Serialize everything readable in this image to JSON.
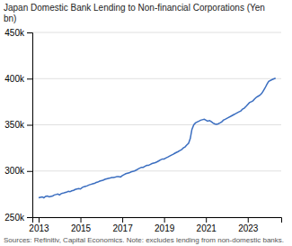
{
  "chart_data": {
    "type": "line",
    "title": "Japan Domestic Bank Lending to Non-financial Corporations (Yen",
    "subtitle": "bn)",
    "annotations": [
      "Sources: Refinitiv, Capital Economics. Note: excludes lending from non-domestic banks."
    ],
    "xlim": [
      2012.7,
      2024.6
    ],
    "xticks": [
      2013,
      2015,
      2017,
      2019,
      2021,
      2023
    ],
    "ylim": [
      250000,
      450000
    ],
    "yticks": [
      {
        "value": 250000,
        "label": "250k"
      },
      {
        "value": 300000,
        "label": "300k"
      },
      {
        "value": 350000,
        "label": "350k"
      },
      {
        "value": 400000,
        "label": "400k"
      },
      {
        "value": 450000,
        "label": "450k"
      }
    ],
    "grid": true,
    "x": [
      2013.0,
      2013.08,
      2013.17,
      2013.25,
      2013.33,
      2013.42,
      2013.5,
      2013.58,
      2013.67,
      2013.75,
      2013.83,
      2013.92,
      2014.0,
      2014.08,
      2014.17,
      2014.25,
      2014.33,
      2014.42,
      2014.5,
      2014.58,
      2014.67,
      2014.75,
      2014.83,
      2014.92,
      2015.0,
      2015.08,
      2015.17,
      2015.25,
      2015.33,
      2015.42,
      2015.5,
      2015.58,
      2015.67,
      2015.75,
      2015.83,
      2015.92,
      2016.0,
      2016.08,
      2016.17,
      2016.25,
      2016.33,
      2016.42,
      2016.5,
      2016.58,
      2016.67,
      2016.75,
      2016.83,
      2016.92,
      2017.0,
      2017.08,
      2017.17,
      2017.25,
      2017.33,
      2017.42,
      2017.5,
      2017.58,
      2017.67,
      2017.75,
      2017.83,
      2017.92,
      2018.0,
      2018.08,
      2018.17,
      2018.25,
      2018.33,
      2018.42,
      2018.5,
      2018.58,
      2018.67,
      2018.75,
      2018.83,
      2018.92,
      2019.0,
      2019.08,
      2019.17,
      2019.25,
      2019.33,
      2019.42,
      2019.5,
      2019.58,
      2019.67,
      2019.75,
      2019.83,
      2019.92,
      2020.0,
      2020.08,
      2020.17,
      2020.25,
      2020.33,
      2020.42,
      2020.5,
      2020.58,
      2020.67,
      2020.75,
      2020.83,
      2020.92,
      2021.0,
      2021.08,
      2021.17,
      2021.25,
      2021.33,
      2021.42,
      2021.5,
      2021.58,
      2021.67,
      2021.75,
      2021.83,
      2021.92,
      2022.0,
      2022.08,
      2022.17,
      2022.25,
      2022.33,
      2022.42,
      2022.5,
      2022.58,
      2022.67,
      2022.75,
      2022.83,
      2022.92,
      2023.0,
      2023.08,
      2023.17,
      2023.25,
      2023.33,
      2023.42,
      2023.5,
      2023.58,
      2023.67,
      2023.75,
      2023.83,
      2023.92,
      2024.0,
      2024.17,
      2024.33
    ],
    "series": [
      {
        "color": "#3B6EC0",
        "values": [
          271000,
          271500,
          272000,
          271000,
          272500,
          273000,
          272000,
          272500,
          273000,
          274000,
          274500,
          275000,
          274000,
          275500,
          276000,
          276500,
          277000,
          278000,
          277500,
          278500,
          279000,
          280000,
          280500,
          281000,
          280500,
          282000,
          283000,
          283500,
          284000,
          285000,
          285500,
          286000,
          286500,
          287500,
          288000,
          289000,
          289500,
          290000,
          291000,
          291500,
          292000,
          292500,
          293000,
          293000,
          293500,
          294000,
          294000,
          293500,
          295000,
          296000,
          297000,
          297500,
          298000,
          299000,
          299500,
          300000,
          301000,
          302000,
          303000,
          304000,
          304000,
          305000,
          306000,
          306000,
          307000,
          308000,
          308500,
          309000,
          310000,
          311000,
          312000,
          313000,
          313000,
          314000,
          315000,
          316000,
          317000,
          318000,
          319000,
          320000,
          321000,
          322000,
          323000,
          325000,
          326000,
          328000,
          330000,
          335000,
          345000,
          350000,
          352000,
          353000,
          354000,
          355000,
          355500,
          356000,
          355000,
          354000,
          354500,
          353500,
          352000,
          351000,
          350500,
          351000,
          352000,
          353000,
          355000,
          356000,
          357000,
          358000,
          359000,
          360000,
          361000,
          362000,
          363000,
          364000,
          365000,
          367000,
          368000,
          370000,
          372000,
          374000,
          375000,
          376000,
          378000,
          380000,
          381000,
          382000,
          384000,
          387000,
          390000,
          394000,
          397000,
          399000,
          400500
        ]
      }
    ]
  }
}
